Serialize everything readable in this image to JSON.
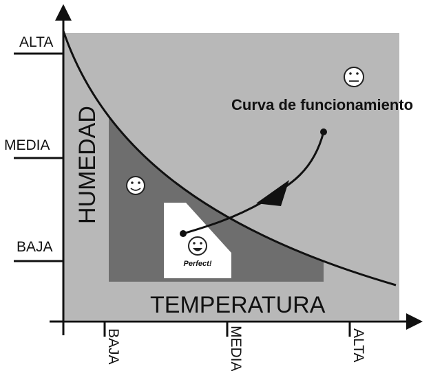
{
  "y_axis": {
    "title": "HUMEDAD",
    "ticks": [
      "ALTA",
      "MEDIA",
      "BAJA"
    ]
  },
  "x_axis": {
    "title": "TEMPERATURA",
    "ticks": [
      "BAJA",
      "MEDIA",
      "ALTA"
    ]
  },
  "annotation": "Curva de funcionamiento",
  "zone_label": "Perfect!"
}
